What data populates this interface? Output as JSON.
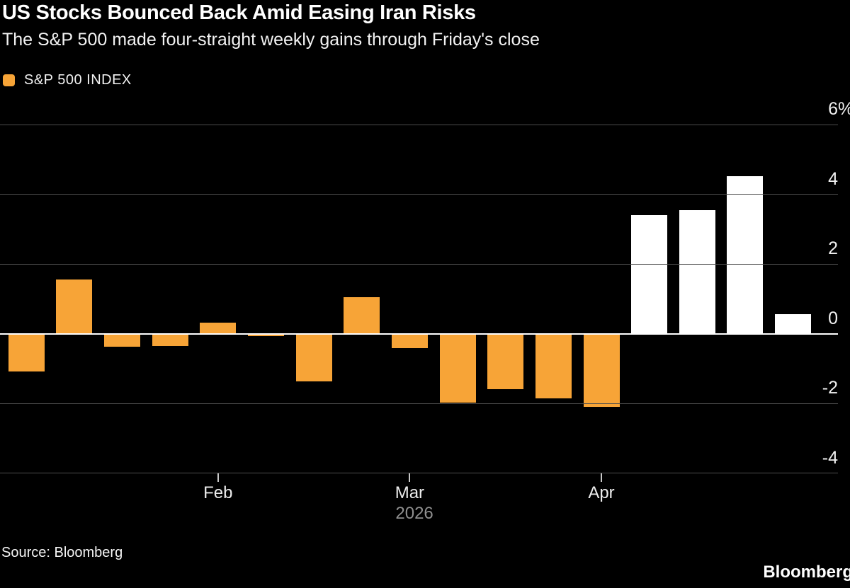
{
  "header": {
    "title": "US Stocks Bounced Back Amid Easing Iran Risks",
    "subtitle": "The S&P 500 made four-straight weekly gains through Friday's close"
  },
  "legend": {
    "label": "S&P 500 INDEX",
    "swatch_color": "#f7a437"
  },
  "chart_data": {
    "type": "bar",
    "title": "US Stocks Bounced Back Amid Easing Iran Risks",
    "series_name": "S&P 500 INDEX",
    "unit": "%",
    "description": "Weekly percent change of the S&P 500 Index; final four white bars are the four straight weekly gains",
    "values": [
      -1.08,
      1.55,
      -0.37,
      -0.36,
      0.32,
      -0.08,
      -1.38,
      1.05,
      -0.42,
      -1.97,
      -1.6,
      -1.85,
      -2.1,
      3.4,
      3.55,
      4.52,
      0.55
    ],
    "highlight_start_index": 13,
    "colors": {
      "default": "#f7a437",
      "highlight": "#ffffff"
    },
    "ylim": [
      -4.7,
      6.3
    ],
    "y_ticks": [
      6,
      4,
      2,
      0,
      -2,
      -4
    ],
    "y_tick_labels": [
      "6%",
      "4",
      "2",
      "0",
      "-2",
      "-4"
    ],
    "grid": true,
    "x_axis": {
      "ticks": [
        {
          "label": "Feb",
          "week_index": 4
        },
        {
          "label": "Mar",
          "week_index": 8
        },
        {
          "label": "Apr",
          "week_index": 12
        }
      ],
      "year_label": "2026",
      "year_under_tick": 1
    }
  },
  "footer": {
    "source": "Source: Bloomberg",
    "logo": "Bloomberg"
  }
}
